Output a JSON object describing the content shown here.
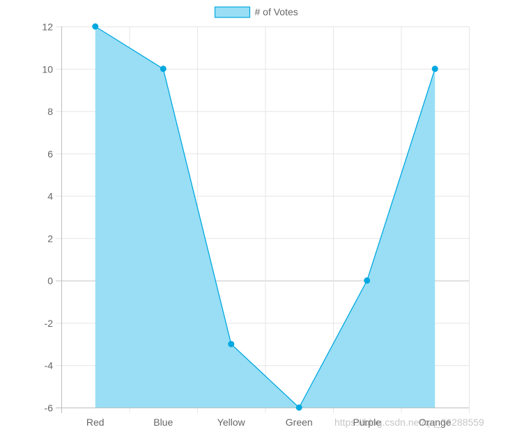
{
  "chart_data": {
    "type": "line",
    "fill": true,
    "categories": [
      "Red",
      "Blue",
      "Yellow",
      "Green",
      "Purple",
      "Orange"
    ],
    "series": [
      {
        "name": "# of Votes",
        "values": [
          12,
          10,
          -3,
          -6,
          0,
          10
        ]
      }
    ],
    "ylim": [
      -6,
      12
    ],
    "yticks": [
      12,
      10,
      8,
      6,
      4,
      2,
      0,
      -2,
      -4,
      -6
    ],
    "grid": true,
    "legend_position": "top",
    "colors": {
      "line": "#00a8e0",
      "fill": "#99def5",
      "grid": "#e5e5e5",
      "zero_line": "#c2c2c2",
      "axis": "#bdbdbd"
    },
    "watermark": "https://blog.csdn.net/qq_36288559"
  }
}
